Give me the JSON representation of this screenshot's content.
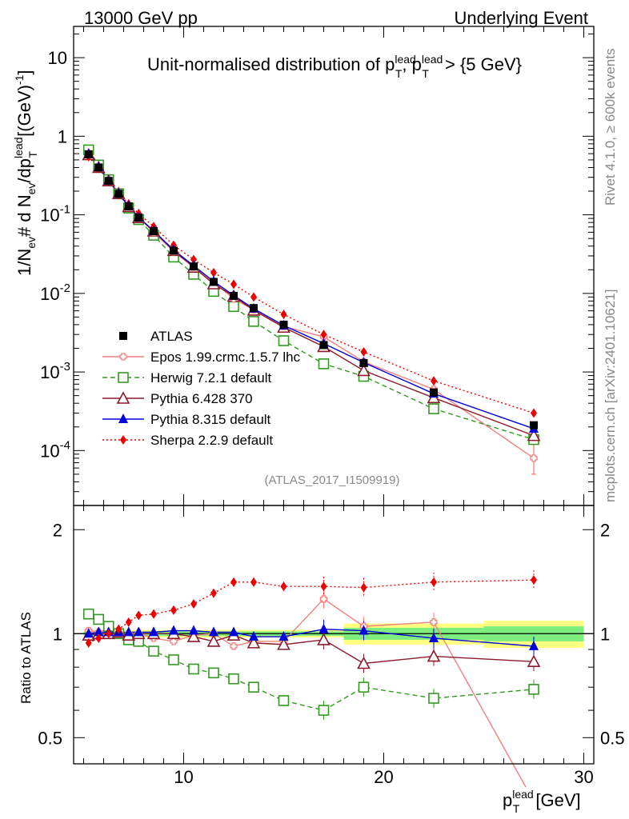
{
  "header": {
    "left": "13000 GeV pp",
    "right": "Underlying Event"
  },
  "side_labels": {
    "rivet": "Rivet 4.1.0, ≥ 600k events",
    "mcplots": "mcplots.cern.ch [arXiv:2401.10621]"
  },
  "analysis_id": "(ATLAS_2017_I1509919)",
  "chart_data": [
    {
      "type": "scatter",
      "panel": "main",
      "title": "Unit-normalised distribution of pT^lead, pT^lead > {5 GeV}",
      "title_parts": {
        "pre": "Unit-normalised distribution of p",
        "sub": "T",
        "sup": "lead",
        "mid": ", p",
        "post": " > {5 GeV}"
      },
      "ylabel": "1/N_ev # d N_ev/dp_T^lead [(GeV)^-1]",
      "ylabel_parts": {
        "a": "1/N",
        "a_sub": "ev",
        "b": "# d N",
        "b_sub": "ev",
        "c": "/dp",
        "c_sub": "T",
        "c_sup": "lead",
        "d": " [(GeV)",
        "d_sup": "-1",
        "e": "]"
      },
      "yscale": "log",
      "ylim": [
        2e-05,
        25
      ],
      "xlim": [
        4.5,
        30.5
      ],
      "y_tick_labels": [
        "10^-4",
        "10^-3",
        "10^-2",
        "10^-1",
        "1",
        "10"
      ],
      "x": [
        5.25,
        5.75,
        6.25,
        6.75,
        7.25,
        7.75,
        8.5,
        9.5,
        10.5,
        11.5,
        12.5,
        13.5,
        15.0,
        17.0,
        19.0,
        22.5,
        27.5
      ],
      "series": [
        {
          "name": "ATLAS",
          "marker": "square",
          "color": "#000000",
          "line": "none",
          "values": [
            0.59,
            0.4,
            0.27,
            0.185,
            0.128,
            0.092,
            0.062,
            0.035,
            0.022,
            0.014,
            0.0093,
            0.0065,
            0.004,
            0.0022,
            0.0013,
            0.00055,
            0.00021
          ]
        },
        {
          "name": "Epos 1.99.crmc.1.5.7 lhc",
          "marker": "open-cross",
          "color": "#f08080",
          "line": "solid",
          "values": [
            0.6,
            0.41,
            0.278,
            0.188,
            0.128,
            0.093,
            0.06,
            0.034,
            0.0218,
            0.014,
            0.0085,
            0.0062,
            0.0038,
            0.0028,
            0.00135,
            0.0006,
            8e-05
          ]
        },
        {
          "name": "Herwig 7.2.1 default",
          "marker": "open-square",
          "color": "#339922",
          "line": "dashed",
          "values": [
            0.67,
            0.43,
            0.28,
            0.185,
            0.122,
            0.087,
            0.055,
            0.029,
            0.0175,
            0.0106,
            0.0068,
            0.0044,
            0.0025,
            0.00127,
            0.00088,
            0.00034,
            0.000138
          ]
        },
        {
          "name": "Pythia 6.428 370",
          "marker": "open-triangle",
          "color": "#8b1a2b",
          "line": "solid",
          "values": [
            0.58,
            0.4,
            0.27,
            0.186,
            0.127,
            0.092,
            0.062,
            0.035,
            0.0215,
            0.0132,
            0.0092,
            0.0061,
            0.0037,
            0.0021,
            0.00104,
            0.00047,
            0.000155
          ]
        },
        {
          "name": "Pythia 8.315 default",
          "marker": "filled-triangle",
          "color": "#0000dd",
          "line": "solid",
          "values": [
            0.59,
            0.405,
            0.272,
            0.187,
            0.129,
            0.093,
            0.0625,
            0.0357,
            0.0225,
            0.0142,
            0.0094,
            0.0064,
            0.0039,
            0.0023,
            0.00132,
            0.00053,
            0.00019
          ]
        },
        {
          "name": "Sherpa 2.2.9 default",
          "marker": "filled-diamond",
          "color": "#ee0000",
          "line": "dotted",
          "values": [
            0.55,
            0.39,
            0.27,
            0.19,
            0.138,
            0.104,
            0.071,
            0.041,
            0.027,
            0.0184,
            0.0131,
            0.009,
            0.0054,
            0.003,
            0.0018,
            0.00077,
            0.0003
          ]
        }
      ],
      "error_bars": {
        "Epos 1.99.crmc.1.5.7 lhc": {
          "x": 27.5,
          "low": 5e-05,
          "high": 0.00012
        }
      }
    },
    {
      "type": "scatter",
      "panel": "ratio",
      "ylabel": "Ratio to ATLAS",
      "xlabel": "p_T^lead [GeV]",
      "xlabel_parts": {
        "a": "p",
        "sub": "T",
        "sup": "lead",
        "b": " [GeV]"
      },
      "ylim": [
        0.42,
        2.35
      ],
      "xlim": [
        4.5,
        30.5
      ],
      "x_tick_labels": [
        "10",
        "20",
        "30"
      ],
      "y_tick_labels": [
        "0.5",
        "1",
        "2"
      ],
      "x": [
        5.25,
        5.75,
        6.25,
        6.75,
        7.25,
        7.75,
        8.5,
        9.5,
        10.5,
        11.5,
        12.5,
        13.5,
        15.0,
        17.0,
        19.0,
        22.5,
        27.5
      ],
      "uncertainty_bands": [
        {
          "x0": 5,
          "x1": 18,
          "inner": [
            0.985,
            1.015
          ],
          "outer": [
            0.975,
            1.025
          ]
        },
        {
          "x0": 18,
          "x1": 25,
          "inner": [
            0.96,
            1.04
          ],
          "outer": [
            0.93,
            1.07
          ]
        },
        {
          "x0": 25,
          "x1": 30,
          "inner": [
            0.95,
            1.05
          ],
          "outer": [
            0.91,
            1.09
          ]
        }
      ],
      "series": [
        {
          "name": "Epos 1.99.crmc.1.5.7 lhc",
          "color": "#f08080",
          "marker": "open-cross",
          "line": "solid",
          "values": [
            1.02,
            1.01,
            1.03,
            1.02,
            1.0,
            1.0,
            0.97,
            0.95,
            0.99,
            1.0,
            0.92,
            0.95,
            0.95,
            1.26,
            1.05,
            1.08,
            0.36
          ],
          "segment_override": {
            "from_x": 22.5,
            "to_x": 27.1,
            "to_y": 0.36
          }
        },
        {
          "name": "Herwig 7.2.1 default",
          "color": "#339922",
          "marker": "open-square",
          "line": "dashed",
          "values": [
            1.14,
            1.1,
            1.05,
            1.0,
            0.96,
            0.95,
            0.89,
            0.84,
            0.79,
            0.77,
            0.74,
            0.7,
            0.64,
            0.6,
            0.7,
            0.65,
            0.69
          ]
        },
        {
          "name": "Pythia 6.428 370",
          "color": "#8b1a2b",
          "marker": "open-triangle",
          "line": "solid",
          "values": [
            0.99,
            1.0,
            1.0,
            1.01,
            0.99,
            1.0,
            1.0,
            1.0,
            0.98,
            0.95,
            0.99,
            0.94,
            0.93,
            0.96,
            0.82,
            0.86,
            0.83
          ]
        },
        {
          "name": "Pythia 8.315 default",
          "color": "#0000dd",
          "marker": "filled-triangle",
          "line": "solid",
          "values": [
            1.0,
            1.01,
            1.01,
            1.01,
            1.01,
            1.01,
            1.01,
            1.02,
            1.02,
            1.01,
            1.01,
            0.98,
            0.98,
            1.03,
            1.02,
            0.97,
            0.92
          ]
        },
        {
          "name": "Sherpa 2.2.9 default",
          "color": "#ee0000",
          "marker": "filled-diamond",
          "line": "dotted",
          "values": [
            0.94,
            0.97,
            1.0,
            1.03,
            1.08,
            1.13,
            1.14,
            1.17,
            1.22,
            1.31,
            1.41,
            1.41,
            1.37,
            1.37,
            1.36,
            1.41,
            1.43
          ]
        }
      ]
    }
  ]
}
